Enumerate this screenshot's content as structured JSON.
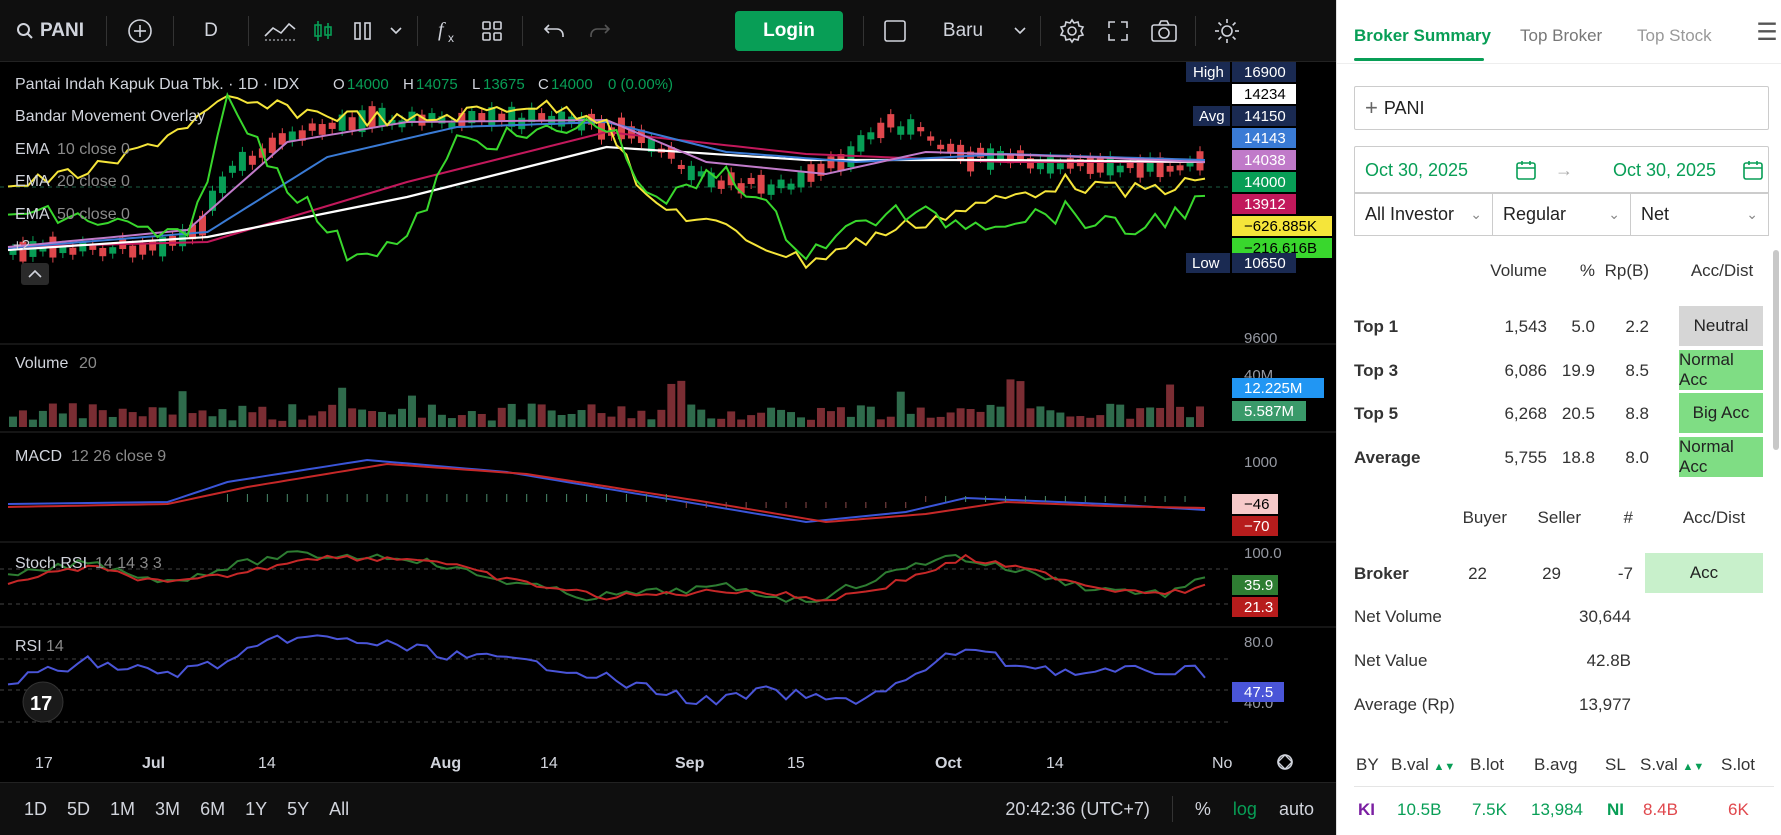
{
  "toolbar": {
    "symbol": "PANI",
    "interval": "D",
    "login_label": "Login",
    "layout_name": "Baru"
  },
  "legend": {
    "title_line": "Pantai Indah Kapuk Dua Tbk. · 1D · IDX",
    "o_label": "O",
    "o_value": "14000",
    "h_label": "H",
    "h_value": "14075",
    "l_label": "L",
    "l_value": "13675",
    "c_label": "C",
    "c_value": "14000",
    "change": "0 (0.00%)",
    "overlay": "Bandar Movement Overlay",
    "ema10_name": "EMA",
    "ema10_params": "10 close 0",
    "ema20_name": "EMA",
    "ema20_params": "20 close 0",
    "ema50_name": "EMA",
    "ema50_params": "50 close 0",
    "more": "+2"
  },
  "price_axis": {
    "high_label": "High",
    "high_value": "16900",
    "val_14234": "14234",
    "avg_label": "Avg",
    "avg_value": "14150",
    "val_14143": "14143",
    "val_14038": "14038",
    "val_14000": "14000",
    "val_13912": "13912",
    "val_neg626": "−626.885K",
    "val_neg216": "−216.616B",
    "low_label": "Low",
    "low_value": "10650",
    "tick_9600": "9600"
  },
  "volume_pane": {
    "name": "Volume",
    "params": "20",
    "tick": "40M",
    "val_a": "12.225M",
    "val_b": "5.587M"
  },
  "macd_pane": {
    "name": "MACD",
    "params": "12 26 close 9",
    "tick": "1000",
    "val_a": "−46",
    "val_b": "−70"
  },
  "stoch_pane": {
    "name": "Stoch RSI",
    "params": "14 14 3 3",
    "tick": "100.0",
    "val_a": "35.9",
    "val_b": "21.3"
  },
  "rsi_pane": {
    "name": "RSI",
    "params": "14",
    "tick_top": "80.0",
    "tick_bottom": "40.0",
    "val": "47.5"
  },
  "time_axis": {
    "labels": [
      "17",
      "Jul",
      "14",
      "Aug",
      "14",
      "Sep",
      "15",
      "Oct",
      "14",
      "No"
    ]
  },
  "bottom_bar": {
    "ranges": [
      "1D",
      "5D",
      "1M",
      "3M",
      "6M",
      "1Y",
      "5Y",
      "All"
    ],
    "clock": "20:42:36 (UTC+7)",
    "percent": "%",
    "log": "log",
    "auto": "auto"
  },
  "panel": {
    "tabs": [
      "Broker Summary",
      "Top Broker",
      "Top Stock"
    ],
    "stock": "PANI",
    "date_from": "Oct 30, 2025",
    "date_to": "Oct 30, 2025",
    "investor": "All Investor",
    "market": "Regular",
    "mode": "Net",
    "summary_headers": [
      "Volume",
      "%",
      "Rp(B)",
      "Acc/Dist"
    ],
    "summary_rows": [
      {
        "label": "Top 1",
        "volume": "1,543",
        "pct": "5.0",
        "rp": "2.2",
        "status": "Neutral"
      },
      {
        "label": "Top 3",
        "volume": "6,086",
        "pct": "19.9",
        "rp": "8.5",
        "status": "Normal Acc"
      },
      {
        "label": "Top 5",
        "volume": "6,268",
        "pct": "20.5",
        "rp": "8.8",
        "status": "Big Acc"
      },
      {
        "label": "Average",
        "volume": "5,755",
        "pct": "18.8",
        "rp": "8.0",
        "status": "Normal Acc"
      }
    ],
    "broker_headers": [
      "Buyer",
      "Seller",
      "#",
      "Acc/Dist"
    ],
    "broker_row": {
      "label": "Broker",
      "buyer": "22",
      "seller": "29",
      "count": "-7",
      "status": "Acc"
    },
    "net_volume_label": "Net Volume",
    "net_volume": "30,644",
    "net_value_label": "Net Value",
    "net_value": "42.8B",
    "avg_label": "Average (Rp)",
    "avg_value": "13,977",
    "trade_headers": [
      "BY",
      "B.val",
      "B.lot",
      "B.avg",
      "SL",
      "S.val",
      "S.lot"
    ],
    "trade_row": {
      "by": "KI",
      "bval": "10.5B",
      "blot": "7.5K",
      "bavg": "13,984",
      "sl": "NI",
      "sval": "8.4B",
      "slot": "6K"
    }
  },
  "colors": {
    "up": "#089e56",
    "down": "#e0474c",
    "accent": "#089e56",
    "ema10": "#c07ac9",
    "ema20": "#3a7bd5",
    "ema50": "#ffffff",
    "ema200": "#c2185b",
    "bandar_yellow": "#f5e53a",
    "bandar_green": "#39d72d",
    "neutral_box": "#d6d6d6",
    "acc_box": "#7fdd84",
    "acc_light": "#c8f0cb"
  },
  "icons": [
    "search-icon",
    "plus-circle-icon",
    "line-tool-icon",
    "candles-icon",
    "bars-icon",
    "chevron-down-icon",
    "fx-icon",
    "templates-icon",
    "undo-icon",
    "redo-icon",
    "square-icon",
    "gear-icon",
    "fullscreen-icon",
    "camera-icon",
    "sun-icon",
    "tradingview-logo",
    "target-icon",
    "calendar-icon",
    "menu-icon"
  ]
}
